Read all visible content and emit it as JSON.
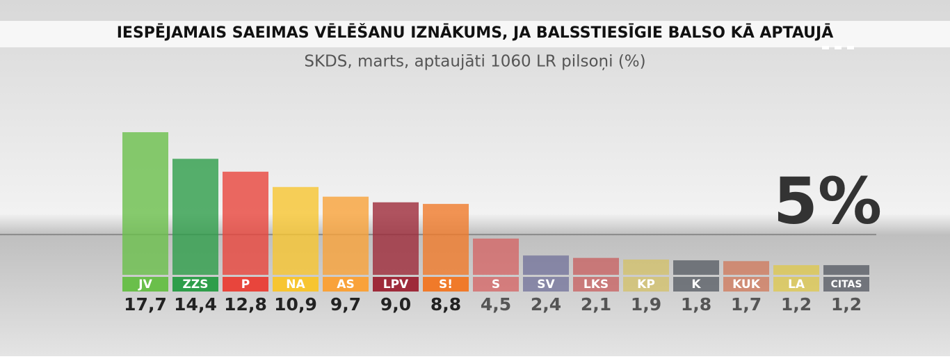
{
  "chart_data": {
    "type": "bar",
    "title": "IESPĒJAMAIS SAEIMAS VĒLĒŠANU IZNĀKUMS, JA BALSSTIESĪGIE BALSO KĀ APTAUJĀ",
    "subtitle": "SKDS, marts, aptaujāti 1060 LR pilsoņi (%)",
    "categories": [
      "JV",
      "ZZS",
      "P",
      "NA",
      "AS",
      "LPV",
      "S!",
      "S",
      "SV",
      "LKS",
      "KP",
      "K",
      "KUK",
      "LA",
      "CITAS"
    ],
    "values": [
      17.7,
      14.4,
      12.8,
      10.9,
      9.7,
      9.0,
      8.8,
      4.5,
      2.4,
      2.1,
      1.9,
      1.8,
      1.7,
      1.2,
      1.2
    ],
    "value_labels": [
      "17,7",
      "14,4",
      "12,8",
      "10,9",
      "9,7",
      "9,0",
      "8,8",
      "4,5",
      "2,4",
      "2,1",
      "1,9",
      "1,8",
      "1,7",
      "1,2",
      "1,2"
    ],
    "colors": [
      "#6abf4b",
      "#2e9e4a",
      "#e8453c",
      "#f7c531",
      "#f9a23a",
      "#9e2a3a",
      "#f07a2a",
      "#d65a5a",
      "#6a6a95",
      "#c85555",
      "#d4c060",
      "#4a5058",
      "#d07050",
      "#e0c840",
      "#4a4f58"
    ],
    "threshold": {
      "value": 5,
      "label": "5%"
    }
  }
}
